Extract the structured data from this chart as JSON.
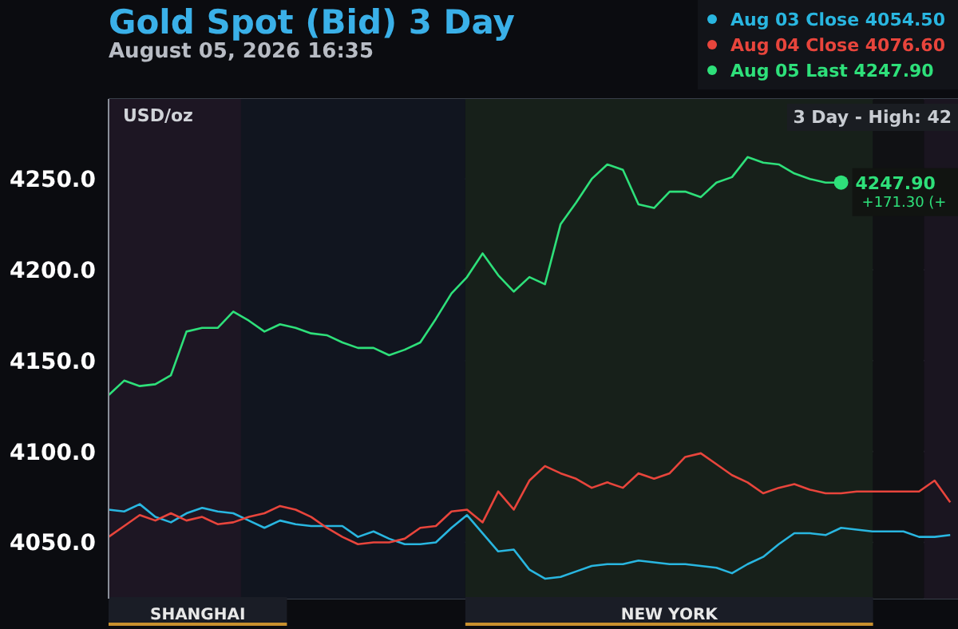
{
  "chart_data": {
    "type": "line",
    "title": "Gold Spot (Bid) 3 Day",
    "subtitle": "August 05, 2026 16:35",
    "ylabel": "USD/oz",
    "categories": [
      null,
      null,
      null,
      null,
      null,
      null,
      null,
      null,
      null,
      null,
      null,
      null,
      null,
      null,
      null,
      null,
      null,
      null,
      null,
      null,
      null,
      null,
      null,
      null,
      null,
      null,
      null,
      null,
      null,
      null,
      null,
      null,
      null,
      null,
      null,
      null,
      null,
      null,
      null,
      null,
      null,
      null,
      null,
      null,
      null,
      null,
      null,
      null,
      null,
      null,
      null,
      null,
      null,
      null,
      null
    ],
    "series": [
      {
        "name": "Aug 03 Close 4054.50",
        "color": "#29b6e0",
        "values": [
          4068,
          4067,
          4071,
          4064,
          4061,
          4066,
          4069,
          4067,
          4066,
          4062,
          4058,
          4062,
          4060,
          4059,
          4059,
          4059,
          4053,
          4056,
          4052,
          4049,
          4049,
          4050,
          4058,
          4065,
          4055,
          4045,
          4046,
          4035,
          4030,
          4031,
          4034,
          4037,
          4038,
          4038,
          4040,
          4039,
          4038,
          4038,
          4037,
          4036,
          4033,
          4038,
          4042,
          4049,
          4055,
          4055,
          4054,
          4058,
          4057,
          4056,
          4056,
          4056,
          4053,
          4053,
          4054
        ]
      },
      {
        "name": "Aug 04 Close 4076.60",
        "color": "#e8453c",
        "values": [
          4053,
          4059,
          4065,
          4062,
          4066,
          4062,
          4064,
          4060,
          4061,
          4064,
          4066,
          4070,
          4068,
          4064,
          4058,
          4053,
          4049,
          4050,
          4050,
          4052,
          4058,
          4059,
          4067,
          4068,
          4061,
          4078,
          4068,
          4084,
          4092,
          4088,
          4085,
          4080,
          4083,
          4080,
          4088,
          4085,
          4088,
          4097,
          4099,
          4093,
          4087,
          4083,
          4077,
          4080,
          4082,
          4079,
          4077,
          4077,
          4078,
          4078,
          4078,
          4078,
          4078,
          4084,
          4072
        ]
      },
      {
        "name": "Aug 05 Last 4247.90",
        "color": "#2ee07a",
        "values": [
          4131,
          4139,
          4136,
          4137,
          4142,
          4166,
          4168,
          4168,
          4177,
          4172,
          4166,
          4170,
          4168,
          4165,
          4164,
          4160,
          4157,
          4157,
          4153,
          4156,
          4160,
          4173,
          4187,
          4196,
          4209,
          4197,
          4188,
          4196,
          4192,
          4225,
          4237,
          4250,
          4258,
          4255,
          4236,
          4234,
          4243,
          4243,
          4240,
          4248,
          4251,
          4262,
          4259,
          4258,
          4253,
          4250,
          4248,
          4248,
          null,
          null,
          null,
          null,
          null,
          null,
          null
        ]
      }
    ],
    "ylim": [
      4019,
      4294
    ],
    "yticks": [
      {
        "value": 4050,
        "label": "4050.0"
      },
      {
        "value": 4100,
        "label": "4100.0"
      },
      {
        "value": 4150,
        "label": "4150.0"
      },
      {
        "value": 4200,
        "label": "4200.0"
      },
      {
        "value": 4250,
        "label": "4250.0"
      }
    ],
    "grid": true,
    "legend": "top right",
    "marker": "none",
    "line_style": "solid",
    "annotations": [
      "3 Day - High: 42",
      "4247.90",
      "+171.30 (+",
      "SHANGHAI",
      "NEW YORK"
    ]
  }
}
